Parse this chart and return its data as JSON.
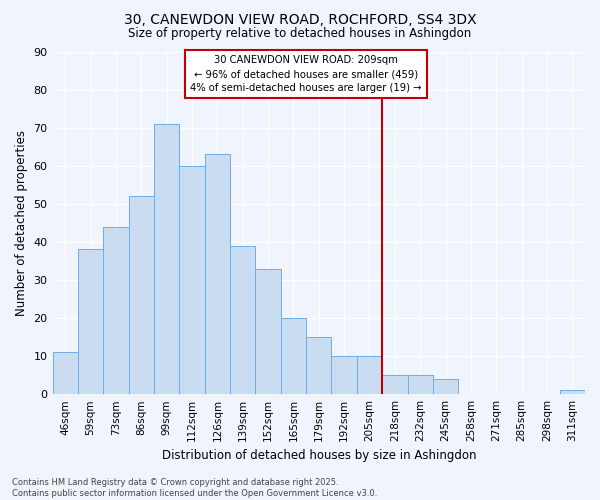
{
  "title_line1": "30, CANEWDON VIEW ROAD, ROCHFORD, SS4 3DX",
  "title_line2": "Size of property relative to detached houses in Ashingdon",
  "xlabel": "Distribution of detached houses by size in Ashingdon",
  "ylabel": "Number of detached properties",
  "categories": [
    "46sqm",
    "59sqm",
    "73sqm",
    "86sqm",
    "99sqm",
    "112sqm",
    "126sqm",
    "139sqm",
    "152sqm",
    "165sqm",
    "179sqm",
    "192sqm",
    "205sqm",
    "218sqm",
    "232sqm",
    "245sqm",
    "258sqm",
    "271sqm",
    "285sqm",
    "298sqm",
    "311sqm"
  ],
  "values": [
    11,
    38,
    44,
    52,
    71,
    60,
    63,
    39,
    33,
    20,
    15,
    10,
    10,
    5,
    5,
    4,
    0,
    0,
    0,
    0,
    1
  ],
  "bar_color": "#c9dcf0",
  "bar_edge_color": "#6aaee8",
  "background_color": "#f0f4fc",
  "grid_color": "#ffffff",
  "vline_index": 12.5,
  "vline_color": "#c00000",
  "annotation_text": "30 CANEWDON VIEW ROAD: 209sqm\n← 96% of detached houses are smaller (459)\n4% of semi-detached houses are larger (19) →",
  "annotation_box_color": "#c00000",
  "annotation_bg": "#ffffff",
  "ylim": [
    0,
    90
  ],
  "yticks": [
    0,
    10,
    20,
    30,
    40,
    50,
    60,
    70,
    80,
    90
  ],
  "footer_line1": "Contains HM Land Registry data © Crown copyright and database right 2025.",
  "footer_line2": "Contains public sector information licensed under the Open Government Licence v3.0."
}
